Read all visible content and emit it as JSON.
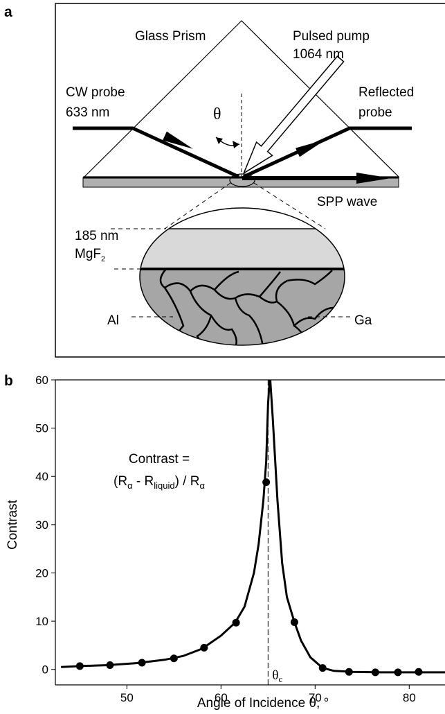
{
  "panel_a": {
    "label": "a",
    "prism": "Glass Prism",
    "pump_line1": "Pulsed pump",
    "pump_line2": "1064 nm",
    "probe_line1": "CW probe",
    "probe_line2": "633 nm",
    "reflected_line1": "Reflected",
    "reflected_line2": "probe",
    "angle": "θ",
    "spp": "SPP wave",
    "thickness": "185 nm",
    "layer": "MgF",
    "layer_sub": "2",
    "metal_left": "Al",
    "metal_right": "Ga"
  },
  "chart_data": {
    "type": "line",
    "panel_label": "b",
    "y_label": "Contrast",
    "x_label": "Angle of Incidence θ, °",
    "formula_line1": "Contrast =",
    "formula_line2": [
      {
        "text": "(R"
      },
      {
        "text": "α",
        "sub": true
      },
      {
        "text": " - R"
      },
      {
        "text": "liquid",
        "sub": true
      },
      {
        "text": ") / R"
      },
      {
        "text": "α",
        "sub": true
      }
    ],
    "marker_line": {
      "text": "θ",
      "sub": "c",
      "x": 65
    },
    "xlim": [
      42.4,
      83.8
    ],
    "xticks": [
      50,
      60,
      70,
      80
    ],
    "ylim": [
      -3.2,
      60
    ],
    "yticks": [
      0,
      10,
      20,
      30,
      40,
      50,
      60
    ],
    "series": [
      {
        "type": "line",
        "color": "#000000",
        "x": [
          43,
          45,
          48,
          51,
          54,
          56,
          58,
          60,
          61.5,
          62.5,
          63.5,
          64,
          64.5,
          64.8,
          65,
          65.2,
          65.5,
          66,
          66.5,
          67,
          67.8,
          68.5,
          69.5,
          70.8,
          72,
          74,
          77,
          80,
          83.8
        ],
        "values": [
          0.5,
          0.7,
          0.9,
          1.3,
          2.0,
          2.8,
          4.3,
          7.0,
          9.7,
          13,
          20,
          26,
          35,
          43,
          55,
          61,
          52,
          35,
          22,
          15,
          9.8,
          6,
          2.5,
          0.3,
          -0.3,
          -0.5,
          -0.6,
          -0.6,
          -0.6
        ]
      },
      {
        "type": "scatter",
        "color": "#000000",
        "x": [
          45,
          48.2,
          51.6,
          55,
          58.2,
          61.6,
          64.8,
          67.8,
          70.8,
          73.6,
          76.4,
          78.8,
          81
        ],
        "values": [
          0.7,
          0.9,
          1.4,
          2.3,
          4.5,
          9.7,
          38.8,
          9.8,
          0.3,
          -0.5,
          -0.6,
          -0.6,
          -0.5
        ]
      }
    ]
  }
}
